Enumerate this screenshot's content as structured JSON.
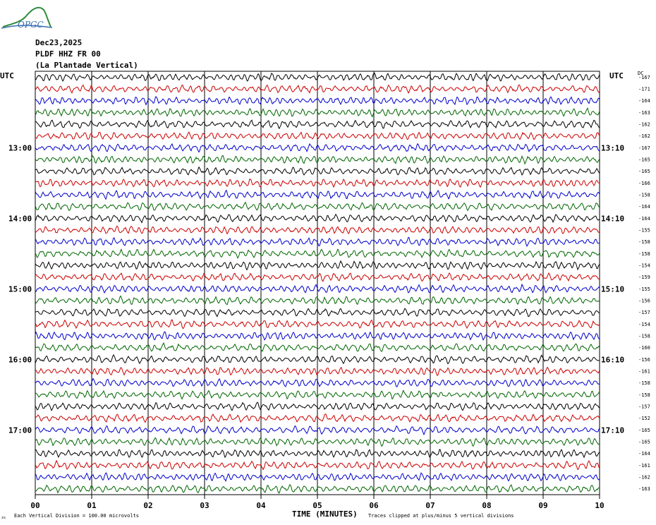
{
  "header": {
    "logo_text": "OPGC",
    "date": "Dec23,2025",
    "station": "PLDF HHZ FR 00",
    "location": "(La Plantade Vertical)"
  },
  "labels": {
    "utc_left": "UTC",
    "utc_right": "UTC",
    "dc_label": "DC",
    "xlabel": "TIME (MINUTES)",
    "scale_note": "Each Vertical Division =  100.00 microvolts",
    "clip_note": "Traces clipped at plus/minus 5 vertical divisions",
    "corner_mark": "zs"
  },
  "colors": {
    "trace_cycle": [
      "#000000",
      "#cc0000",
      "#0000cc",
      "#006600"
    ],
    "grid": "#000000"
  },
  "chart_data": {
    "type": "line",
    "subtype": "helicorder",
    "x_ticks": [
      "00",
      "01",
      "02",
      "03",
      "04",
      "05",
      "06",
      "07",
      "08",
      "09",
      "10"
    ],
    "xlim": [
      0,
      10
    ],
    "row_count": 36,
    "row_duration_minutes": 10,
    "left_time_labels": [
      {
        "row": 6,
        "text": "13:00"
      },
      {
        "row": 12,
        "text": "14:00"
      },
      {
        "row": 18,
        "text": "15:00"
      },
      {
        "row": 24,
        "text": "16:00"
      },
      {
        "row": 30,
        "text": "17:00"
      }
    ],
    "right_time_labels": [
      {
        "row": 6,
        "text": "13:10"
      },
      {
        "row": 12,
        "text": "14:10"
      },
      {
        "row": 18,
        "text": "15:10"
      },
      {
        "row": 24,
        "text": "16:10"
      },
      {
        "row": 30,
        "text": "17:10"
      }
    ],
    "dc_offsets": [
      -167,
      -171,
      -164,
      -163,
      -162,
      -162,
      -167,
      -165,
      -165,
      -166,
      -158,
      -164,
      -164,
      -155,
      -158,
      -158,
      -154,
      -159,
      -155,
      -156,
      -157,
      -154,
      -158,
      -160,
      -156,
      -161,
      -158,
      -158,
      -157,
      -152,
      -165,
      -165,
      -164,
      -161,
      -162,
      -163
    ],
    "clip_divisions": 5,
    "vertical_division_microvolts": 100.0
  }
}
